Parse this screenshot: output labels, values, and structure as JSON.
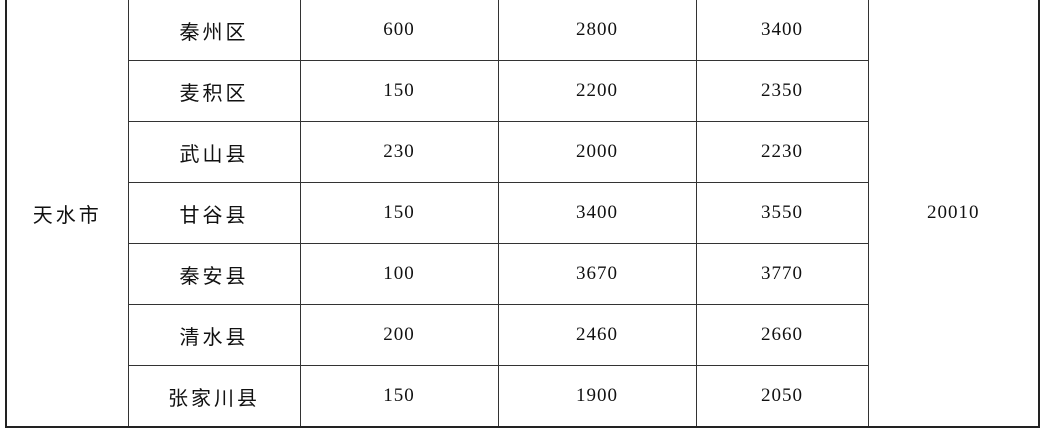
{
  "city": "天水市",
  "total": "20010",
  "rows": [
    {
      "county": "秦州区",
      "a": "600",
      "b": "2800",
      "c": "3400"
    },
    {
      "county": "麦积区",
      "a": "150",
      "b": "2200",
      "c": "2350"
    },
    {
      "county": "武山县",
      "a": "230",
      "b": "2000",
      "c": "2230"
    },
    {
      "county": "甘谷县",
      "a": "150",
      "b": "3400",
      "c": "3550"
    },
    {
      "county": "秦安县",
      "a": "100",
      "b": "3670",
      "c": "3770"
    },
    {
      "county": "清水县",
      "a": "200",
      "b": "2460",
      "c": "2660"
    },
    {
      "county": "张家川县",
      "a": "150",
      "b": "1900",
      "c": "2050"
    }
  ]
}
